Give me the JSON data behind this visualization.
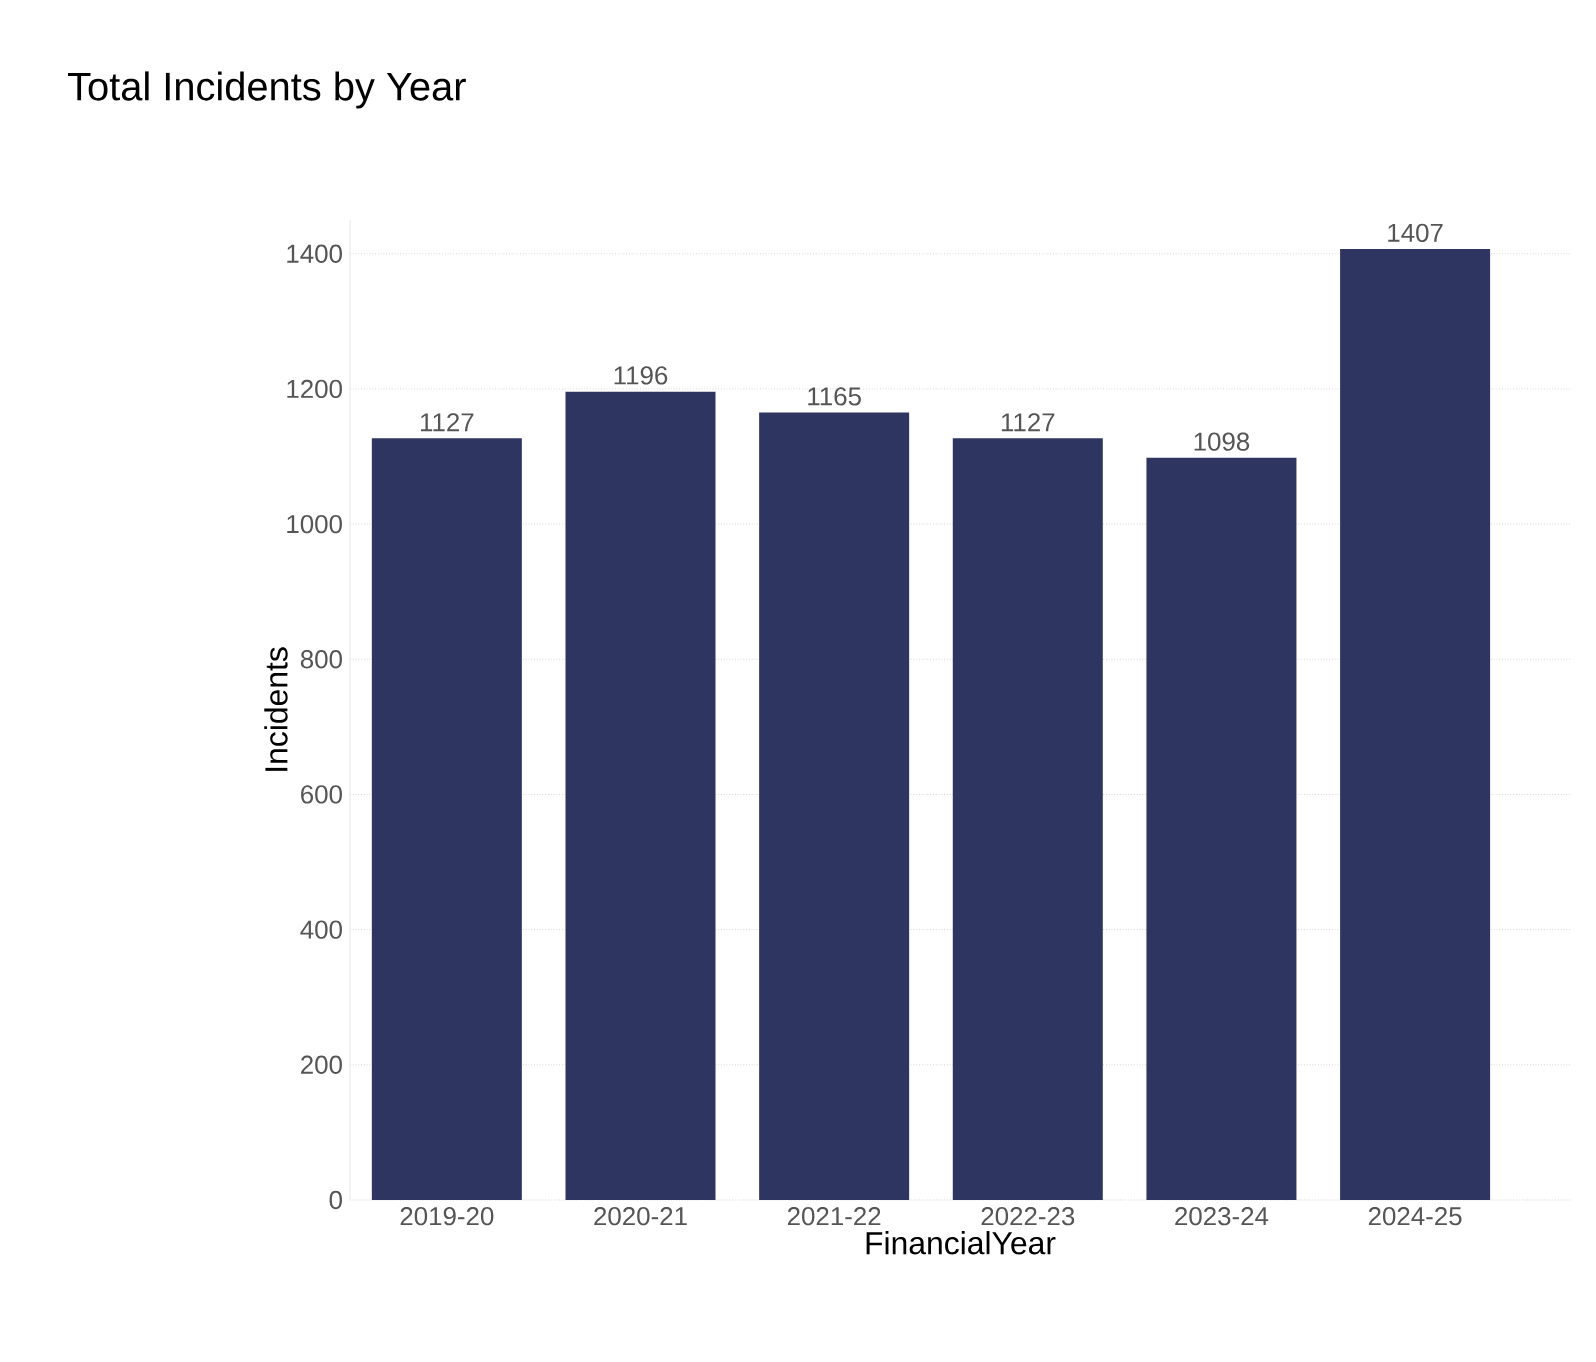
{
  "chart_data": {
    "type": "bar",
    "title": "Total Incidents by Year",
    "xlabel": "FinancialYear",
    "ylabel": "Incidents",
    "categories": [
      "2019-20",
      "2020-21",
      "2021-22",
      "2022-23",
      "2023-24",
      "2024-25"
    ],
    "values": [
      1127,
      1196,
      1165,
      1127,
      1098,
      1407
    ],
    "color": "#2e3561",
    "ylim": [
      0,
      1450
    ],
    "yticks": [
      0,
      200,
      400,
      600,
      800,
      1000,
      1200,
      1400
    ],
    "grid": "y",
    "data_labels": true
  }
}
